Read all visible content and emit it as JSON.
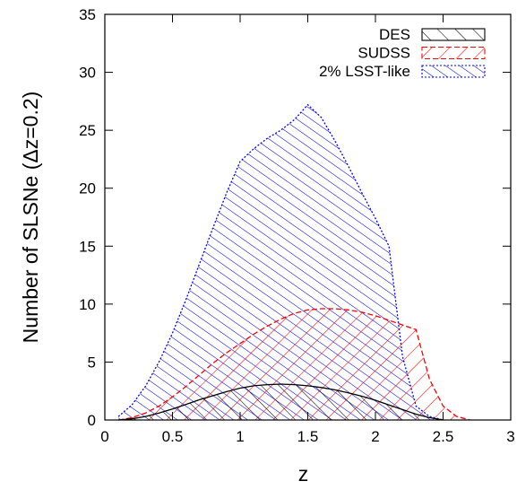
{
  "chart_data": {
    "type": "area",
    "xlabel": "z",
    "ylabel": "Number of SLSNe (Δz=0.2)",
    "xlim": [
      0,
      3
    ],
    "ylim": [
      0,
      35
    ],
    "xticks": [
      0,
      0.5,
      1,
      1.5,
      2,
      2.5,
      3
    ],
    "xtick_labels": [
      "0",
      "0.5",
      "1",
      "1.5",
      "2",
      "2.5",
      "3"
    ],
    "yticks": [
      0,
      5,
      10,
      15,
      20,
      25,
      30,
      35
    ],
    "ytick_labels": [
      "0",
      "5",
      "10",
      "15",
      "20",
      "25",
      "30",
      "35"
    ],
    "legend_position": "top-right",
    "series": [
      {
        "name": "2% LSST-like",
        "color": "#0000ff",
        "hatch": "dense-diagonal",
        "x": [
          0.1,
          0.2,
          0.3,
          0.4,
          0.5,
          0.6,
          0.7,
          0.8,
          0.9,
          1.0,
          1.1,
          1.2,
          1.3,
          1.4,
          1.5,
          1.6,
          1.7,
          1.8,
          1.9,
          2.0,
          2.1,
          2.2,
          2.3,
          2.4,
          2.5
        ],
        "y": [
          0.3,
          1.3,
          2.9,
          5.0,
          7.5,
          10.4,
          13.5,
          16.6,
          19.6,
          22.3,
          23.4,
          24.3,
          25.0,
          25.9,
          27.2,
          26.1,
          24.1,
          21.9,
          19.6,
          17.4,
          15.0,
          5.5,
          1.2,
          0.3,
          0.0
        ]
      },
      {
        "name": "SUDSS",
        "color": "#ff0000",
        "hatch": "sparse-diagonal",
        "x": [
          0.1,
          0.2,
          0.3,
          0.4,
          0.5,
          0.6,
          0.7,
          0.8,
          0.9,
          1.0,
          1.1,
          1.2,
          1.3,
          1.4,
          1.5,
          1.6,
          1.7,
          1.8,
          1.9,
          2.0,
          2.1,
          2.2,
          2.3,
          2.4,
          2.5,
          2.6,
          2.7
        ],
        "y": [
          0.0,
          0.2,
          0.6,
          1.2,
          2.0,
          2.9,
          3.9,
          4.9,
          5.8,
          6.6,
          7.4,
          8.1,
          8.7,
          9.2,
          9.5,
          9.6,
          9.6,
          9.5,
          9.3,
          9.0,
          8.6,
          8.2,
          7.8,
          3.5,
          1.2,
          0.3,
          0.0
        ]
      },
      {
        "name": "DES",
        "color": "#000000",
        "hatch": "sparse-diagonal",
        "x": [
          0.1,
          0.2,
          0.3,
          0.4,
          0.5,
          0.6,
          0.7,
          0.8,
          0.9,
          1.0,
          1.1,
          1.2,
          1.3,
          1.4,
          1.5,
          1.6,
          1.7,
          1.8,
          1.9,
          2.0,
          2.1,
          2.2,
          2.3,
          2.4,
          2.5
        ],
        "y": [
          0.0,
          0.1,
          0.3,
          0.6,
          0.95,
          1.35,
          1.75,
          2.1,
          2.45,
          2.75,
          2.95,
          3.05,
          3.1,
          3.05,
          2.95,
          2.8,
          2.6,
          2.35,
          2.05,
          1.7,
          1.3,
          0.9,
          0.5,
          0.2,
          0.0
        ]
      }
    ],
    "legend": [
      "DES",
      "SUDSS",
      "2% LSST-like"
    ]
  }
}
